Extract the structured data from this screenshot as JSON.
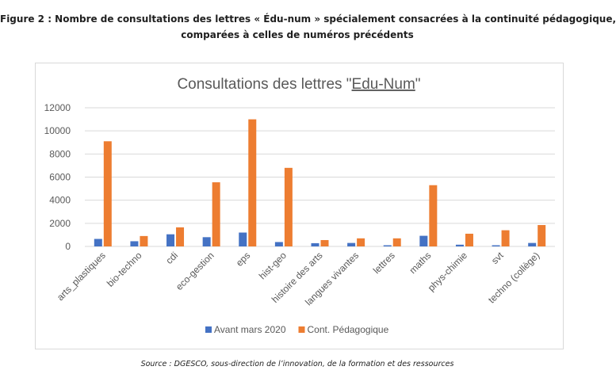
{
  "figure": {
    "title_line1": "Figure 2 : Nombre de consultations des lettres « Édu-num » spécialement consacrées à la continuité pédagogique,",
    "title_line2": "comparées à celles de numéros précédents",
    "source": "Source : DGESCO, sous-direction de l’innovation, de la formation et des ressources"
  },
  "chart_data": {
    "type": "bar",
    "title_prefix": "Consultations des lettres \"",
    "title_highlight": "Edu-Num",
    "title_suffix": "\"",
    "categories": [
      "arts_plastiques",
      "bio-techno",
      "cdi",
      "eco-gestion",
      "eps",
      "hist-geo",
      "histoire des arts",
      "langues vivantes",
      "lettres",
      "maths",
      "phys-chimie",
      "svt",
      "techno (collège)"
    ],
    "series": [
      {
        "name": "Avant mars 2020",
        "color": "#4472c4",
        "values": [
          650,
          450,
          1050,
          800,
          1200,
          380,
          280,
          300,
          100,
          920,
          150,
          100,
          300
        ]
      },
      {
        "name": "Cont. Pédagogique",
        "color": "#ed7d31",
        "values": [
          9100,
          900,
          1650,
          5550,
          11000,
          6800,
          550,
          700,
          700,
          5300,
          1100,
          1400,
          1850
        ]
      }
    ],
    "ylim": [
      0,
      12000
    ],
    "yticks": [
      0,
      2000,
      4000,
      6000,
      8000,
      10000,
      12000
    ],
    "grid": true,
    "legend_position": "bottom"
  }
}
